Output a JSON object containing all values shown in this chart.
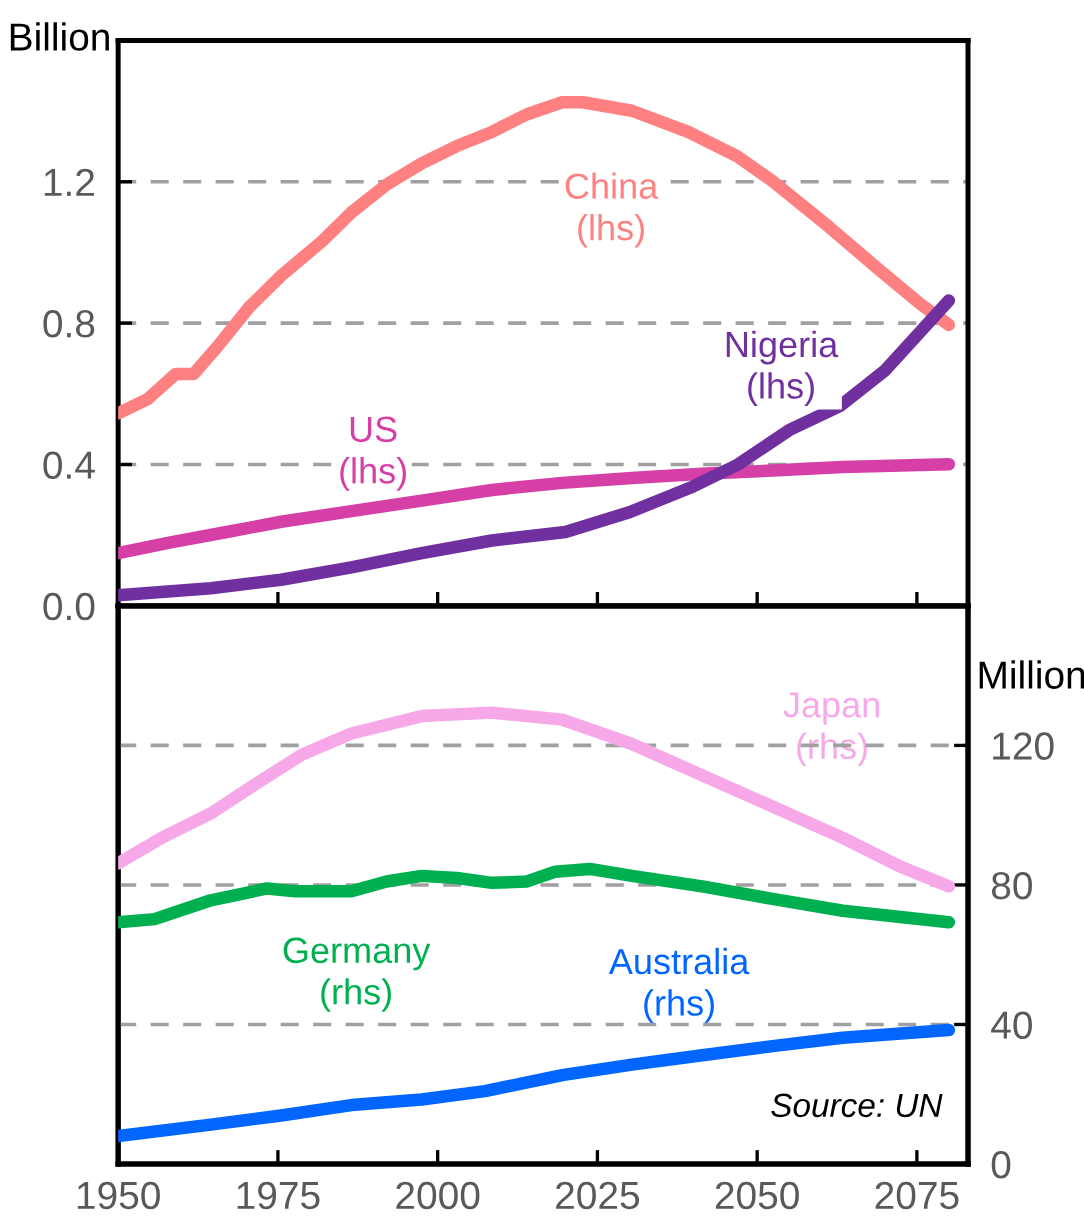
{
  "chart_data": [
    {
      "type": "line",
      "ylabel": "Billion",
      "xlim": [
        1950,
        2083
      ],
      "xticks": [
        1950,
        1975,
        2000,
        2025,
        2050,
        2075
      ],
      "ylim": [
        0,
        1.6
      ],
      "yticks": [
        {
          "value": 0,
          "label": "0.0"
        },
        {
          "value": 0.4,
          "label": "0.4"
        },
        {
          "value": 0.8,
          "label": "0.8"
        },
        {
          "value": 1.2,
          "label": "1.2"
        }
      ],
      "tick_labels": "y",
      "grid": "y",
      "line_style": "solid",
      "marker": "none",
      "series": [
        {
          "name": "China\n(lhs)",
          "color": "#ff8080",
          "x": [
            1950,
            1954.6,
            1959,
            1961.8,
            1965.6,
            1970.5,
            1975.5,
            1982,
            1986.5,
            1992,
            1997.5,
            2003,
            2008.5,
            2014,
            2019.5,
            2022.7,
            2030.4,
            2039.2,
            2046.9,
            2052.4,
            2061.2,
            2068.9,
            2075.5,
            2080
          ],
          "values": [
            0.545,
            0.585,
            0.656,
            0.656,
            0.735,
            0.845,
            0.934,
            1.033,
            1.113,
            1.192,
            1.252,
            1.301,
            1.341,
            1.391,
            1.425,
            1.425,
            1.401,
            1.341,
            1.272,
            1.202,
            1.073,
            0.954,
            0.855,
            0.795
          ]
        },
        {
          "name": "US\n(lhs)",
          "color": "#d63fa6",
          "x": [
            1950,
            1958,
            1967,
            1975.5,
            1986.5,
            1997.5,
            2008.5,
            2019.5,
            2030.4,
            2041.4,
            2052.4,
            2063.4,
            2080
          ],
          "values": [
            0.149,
            0.179,
            0.209,
            0.238,
            0.268,
            0.298,
            0.328,
            0.348,
            0.362,
            0.374,
            0.383,
            0.393,
            0.401
          ]
        },
        {
          "name": "Nigeria\n(lhs)",
          "color": "#7030a0",
          "x": [
            1950,
            1964.5,
            1975.5,
            1986.5,
            1997.5,
            2008.5,
            2020,
            2030,
            2040,
            2047,
            2055,
            2063,
            2070,
            2080
          ],
          "values": [
            0.03,
            0.05,
            0.074,
            0.109,
            0.149,
            0.185,
            0.209,
            0.265,
            0.338,
            0.4,
            0.497,
            0.566,
            0.666,
            0.864
          ]
        }
      ]
    },
    {
      "type": "line",
      "annotations": [
        "Source: UN"
      ],
      "xlim": [
        1950,
        2083
      ],
      "xticks": [
        1950,
        1975,
        2000,
        2025,
        2050,
        2075
      ],
      "y2label": "Million",
      "y2lim": [
        0,
        160
      ],
      "y2ticks": [
        0,
        40,
        80,
        120
      ],
      "grid": "y",
      "line_style": "solid",
      "marker": "none",
      "series": [
        {
          "name": "Japan\n(rhs)",
          "color": "#f7a8e8",
          "axis": "y2",
          "x": [
            1950,
            1956.8,
            1964.5,
            1972,
            1978.8,
            1986.5,
            1997.5,
            2008.5,
            2019.5,
            2030.4,
            2041.4,
            2052.4,
            2063.4,
            2072,
            2080
          ],
          "values": [
            86.2,
            93.5,
            100.5,
            109.5,
            117.4,
            123.4,
            128.4,
            129.4,
            127.4,
            120.4,
            111.4,
            102.5,
            93.5,
            85.6,
            79.6
          ]
        },
        {
          "name": "Germany\n(rhs)",
          "color": "#00b050",
          "axis": "y2",
          "x": [
            1950,
            1955.7,
            1964.5,
            1973.3,
            1977.7,
            1986.5,
            1992,
            1997.5,
            2003,
            2008.5,
            2014,
            2018.4,
            2023.8,
            2030.4,
            2041.4,
            2052.4,
            2063.4,
            2080
          ],
          "values": [
            69.3,
            70.2,
            75.6,
            79.0,
            78.2,
            78.2,
            81.0,
            82.6,
            82.0,
            80.6,
            81.0,
            83.8,
            84.6,
            82.6,
            79.6,
            76.0,
            72.6,
            69.3
          ]
        },
        {
          "name": "Australia\n(rhs)",
          "color": "#0066ff",
          "axis": "y2",
          "x": [
            1950,
            1964.5,
            1975.5,
            1986.5,
            1997.5,
            2007.4,
            2019.5,
            2030.4,
            2041.4,
            2052.4,
            2063.4,
            2080
          ],
          "values": [
            8.0,
            11.3,
            13.9,
            16.9,
            18.5,
            20.9,
            25.5,
            28.5,
            31.2,
            33.8,
            36.2,
            38.4
          ]
        }
      ]
    }
  ]
}
